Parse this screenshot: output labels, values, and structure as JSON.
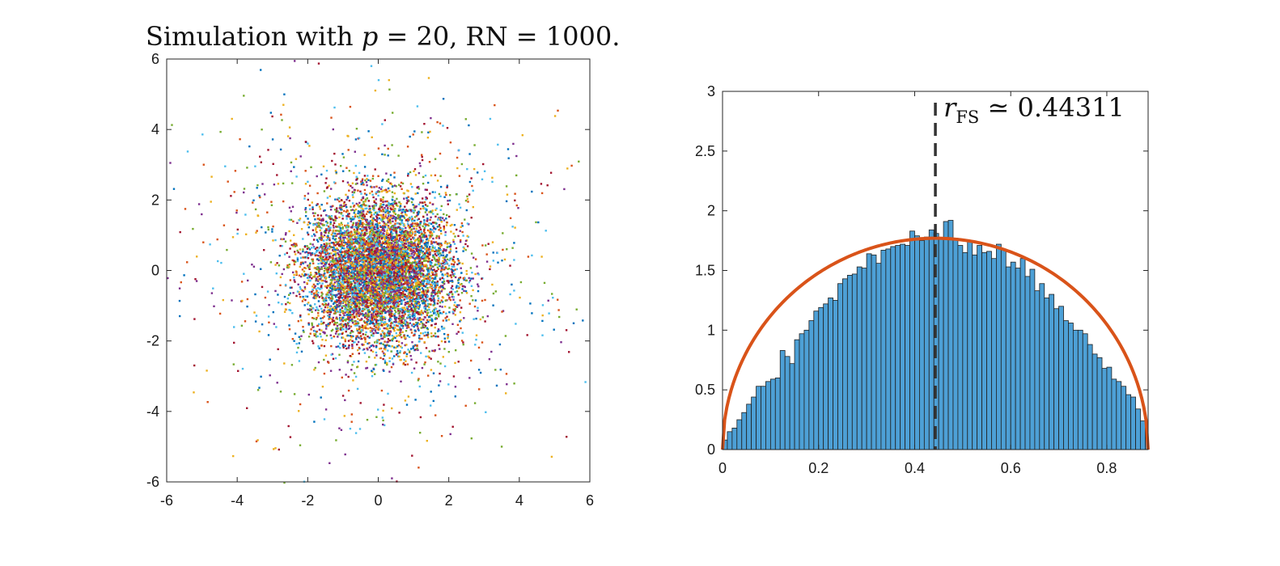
{
  "chart_data": [
    {
      "type": "scatter",
      "title": "Simulation with p = 20, RN = 1000.",
      "title_parts": {
        "prefix": "Simulation with ",
        "var": "p",
        "middle": " = 20, RN = 1000."
      },
      "xlabel": "",
      "ylabel": "",
      "xlim": [
        -6,
        6
      ],
      "ylim": [
        -6,
        6
      ],
      "xticks": [
        "-6",
        "-4",
        "-2",
        "0",
        "2",
        "4",
        "6"
      ],
      "yticks": [
        "-6",
        "-4",
        "-2",
        "0",
        "2",
        "4",
        "6"
      ],
      "grid": false,
      "distribution": {
        "description_center": [
          0,
          0
        ],
        "core_std": 1.0,
        "tail_std": 2.6,
        "tail_fraction": 0.12,
        "approx_points": 8000
      },
      "series_colors": [
        "#0072BD",
        "#D95319",
        "#EDB120",
        "#7E2F8E",
        "#77AC30",
        "#4DBEEE",
        "#A2142F"
      ]
    },
    {
      "type": "bar",
      "subtype": "histogram",
      "xlim": [
        0,
        0.886
      ],
      "ylim": [
        0,
        3
      ],
      "xticks": [
        "0",
        "0.2",
        "0.4",
        "0.6",
        "0.8"
      ],
      "yticks": [
        "0",
        "0.5",
        "1",
        "1.5",
        "2",
        "2.5",
        "3"
      ],
      "bin_width": 0.01,
      "bin_start": 0,
      "values": [
        0.08,
        0.15,
        0.18,
        0.25,
        0.31,
        0.38,
        0.44,
        0.53,
        0.53,
        0.57,
        0.59,
        0.6,
        0.83,
        0.78,
        0.72,
        0.92,
        0.97,
        1.0,
        1.08,
        1.16,
        1.19,
        1.22,
        1.27,
        1.25,
        1.39,
        1.43,
        1.46,
        1.47,
        1.53,
        1.52,
        1.64,
        1.63,
        1.56,
        1.67,
        1.68,
        1.7,
        1.71,
        1.72,
        1.71,
        1.83,
        1.79,
        1.75,
        1.78,
        1.84,
        1.81,
        1.77,
        1.91,
        1.92,
        1.77,
        1.71,
        1.65,
        1.74,
        1.63,
        1.71,
        1.65,
        1.66,
        1.6,
        1.72,
        1.68,
        1.53,
        1.57,
        1.52,
        1.6,
        1.45,
        1.51,
        1.33,
        1.39,
        1.27,
        1.3,
        1.18,
        1.2,
        1.08,
        1.06,
        1.0,
        1.0,
        0.97,
        0.88,
        0.8,
        0.77,
        0.68,
        0.69,
        0.59,
        0.57,
        0.53,
        0.46,
        0.44,
        0.34,
        0.24,
        0.23,
        0.13
      ],
      "curve": {
        "type": "semicircle",
        "radius": 0.886,
        "peak": 1.77
      },
      "marker": {
        "x": 0.44311,
        "label": "r_FS ≃ 0.44311",
        "label_var": "r",
        "label_sub": "FS",
        "label_rest": " ≃ 0.44311"
      },
      "bar_color": "#4DA0D6",
      "curve_color": "#D95319"
    }
  ]
}
